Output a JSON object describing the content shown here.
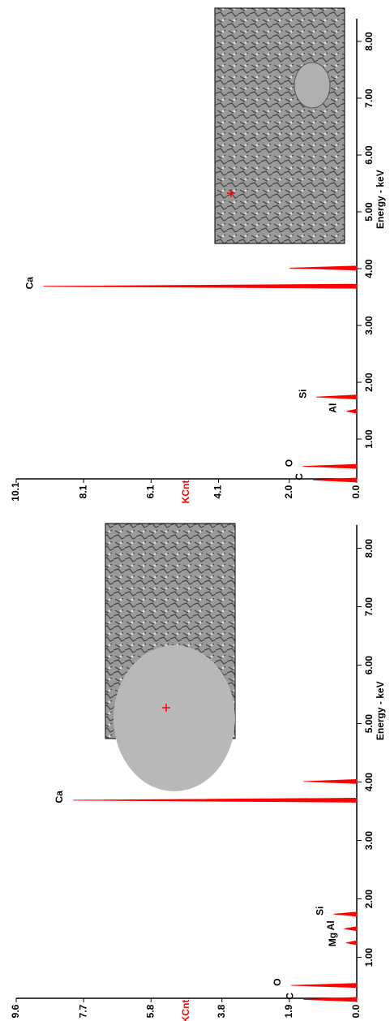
{
  "chart_data": [
    {
      "type": "spectrum",
      "color": "#ff0000",
      "x": [
        0.28,
        0.52,
        1.25,
        1.49,
        1.74,
        3.69,
        4.01
      ],
      "values": [
        1.5,
        1.85,
        0.3,
        0.35,
        0.65,
        8.0,
        1.5
      ],
      "peak_labels": [
        "C",
        "O",
        "Mg",
        "Al",
        "Si",
        "Ca",
        null
      ],
      "xlabel": "Energy - keV",
      "ylabel": "KCnt",
      "xlim": [
        0.3,
        8.4
      ],
      "xticks": [
        {
          "value": 1,
          "label": "1.00"
        },
        {
          "value": 2,
          "label": "2.00"
        },
        {
          "value": 3,
          "label": "3.00"
        },
        {
          "value": 4,
          "label": "4.00"
        },
        {
          "value": 5,
          "label": "5.00"
        },
        {
          "value": 6,
          "label": "6.00"
        },
        {
          "value": 7,
          "label": "7.00"
        },
        {
          "value": 8,
          "label": "8.00"
        }
      ],
      "ylim": [
        0,
        9.6
      ],
      "yticks": [
        {
          "value": 0,
          "label": "0.0"
        },
        1.9,
        3.8,
        5.8,
        7.7,
        9.6
      ]
    },
    {
      "type": "spectrum",
      "color": "#ff0000",
      "x": [
        0.28,
        0.52,
        1.49,
        1.74,
        3.69,
        4.01
      ],
      "values": [
        1.3,
        1.6,
        0.3,
        1.2,
        9.3,
        2.0
      ],
      "peak_labels": [
        "C",
        "O",
        "Al",
        "Si",
        "Ca",
        null
      ],
      "xlabel": "Energy - keV",
      "ylabel": "KCnt",
      "xlim": [
        0.3,
        8.4
      ],
      "xticks": [
        {
          "value": 1,
          "label": "1.00"
        },
        {
          "value": 2,
          "label": "2.00"
        },
        {
          "value": 3,
          "label": "3.00"
        },
        {
          "value": 4,
          "label": "4.00"
        },
        {
          "value": 5,
          "label": "5.00"
        },
        {
          "value": 6,
          "label": "6.00"
        },
        {
          "value": 7,
          "label": "7.00"
        },
        {
          "value": 8,
          "label": "8.00"
        }
      ],
      "ylim": [
        0,
        10.1
      ],
      "yticks": [
        {
          "value": 0,
          "label": "0.0"
        },
        {
          "value": 2,
          "label": "2.0"
        },
        4.1,
        6.1,
        8.1,
        10.1
      ]
    }
  ]
}
